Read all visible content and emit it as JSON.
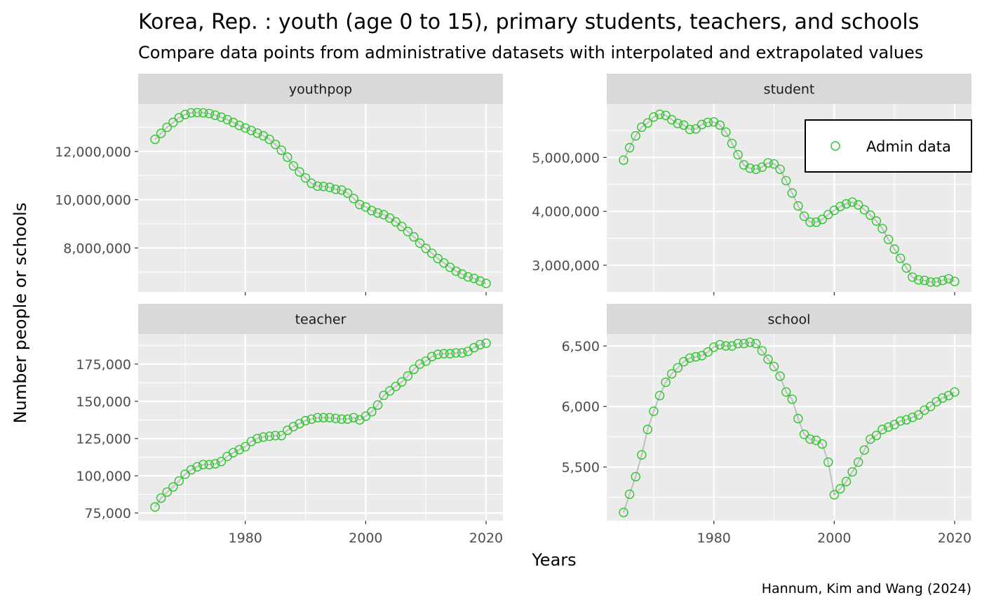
{
  "title": "Korea, Rep. : youth (age 0 to 15), primary students, teachers, and schools",
  "subtitle": "Compare data points from administrative datasets with interpolated and extrapolated values",
  "ylabel": "Number people or schools",
  "xlabel": "Years",
  "caption": "Hannum, Kim and Wang (2024)",
  "legend": {
    "label": "Admin data",
    "position": "top-right"
  },
  "colors": {
    "points": "#2dc72d",
    "line": "#bfbfbf",
    "panel_bg": "#ebebeb",
    "strip_bg": "#d9d9d9",
    "grid": "#ffffff"
  },
  "chart_data": [
    {
      "type": "line",
      "panel": "youthpop",
      "grid": true,
      "x_ticks": [
        1980,
        2000,
        2020
      ],
      "x_tick_labels": [
        "1980",
        "2000",
        "2020"
      ],
      "y_ticks": [
        8000000,
        10000000,
        12000000
      ],
      "y_tick_labels": [
        "8,000,000",
        "10,000,000",
        "12,000,000"
      ],
      "ylim": [
        6500000,
        13650000
      ],
      "x": [
        1965,
        1966,
        1967,
        1968,
        1969,
        1970,
        1971,
        1972,
        1973,
        1974,
        1975,
        1976,
        1977,
        1978,
        1979,
        1980,
        1981,
        1982,
        1983,
        1984,
        1985,
        1986,
        1987,
        1988,
        1989,
        1990,
        1991,
        1992,
        1993,
        1994,
        1995,
        1996,
        1997,
        1998,
        1999,
        2000,
        2001,
        2002,
        2003,
        2004,
        2005,
        2006,
        2007,
        2008,
        2009,
        2010,
        2011,
        2012,
        2013,
        2014,
        2015,
        2016,
        2017,
        2018,
        2019,
        2020
      ],
      "y": [
        12500000,
        12750000,
        13000000,
        13200000,
        13400000,
        13530000,
        13600000,
        13610000,
        13600000,
        13570000,
        13500000,
        13420000,
        13320000,
        13200000,
        13080000,
        12970000,
        12870000,
        12760000,
        12650000,
        12500000,
        12290000,
        12050000,
        11760000,
        11400000,
        11150000,
        10900000,
        10680000,
        10560000,
        10550000,
        10510000,
        10430000,
        10400000,
        10270000,
        10050000,
        9800000,
        9700000,
        9550000,
        9450000,
        9380000,
        9240000,
        9080000,
        8890000,
        8680000,
        8460000,
        8200000,
        7980000,
        7780000,
        7560000,
        7380000,
        7200000,
        7040000,
        6920000,
        6800000,
        6740000,
        6630000,
        6530000
      ]
    },
    {
      "type": "line",
      "panel": "student",
      "grid": true,
      "x_ticks": [
        1980,
        2000,
        2020
      ],
      "x_tick_labels": [
        "1980",
        "2000",
        "2020"
      ],
      "y_ticks": [
        3000000,
        4000000,
        5000000
      ],
      "y_tick_labels": [
        "3,000,000",
        "4,000,000",
        "5,000,000"
      ],
      "ylim": [
        2650000,
        5850000
      ],
      "x": [
        1965,
        1966,
        1967,
        1968,
        1969,
        1970,
        1971,
        1972,
        1973,
        1974,
        1975,
        1976,
        1977,
        1978,
        1979,
        1980,
        1981,
        1982,
        1983,
        1984,
        1985,
        1986,
        1987,
        1988,
        1989,
        1990,
        1991,
        1992,
        1993,
        1994,
        1995,
        1996,
        1997,
        1998,
        1999,
        2000,
        2001,
        2002,
        2003,
        2004,
        2005,
        2006,
        2007,
        2008,
        2009,
        2010,
        2011,
        2012,
        2013,
        2014,
        2015,
        2016,
        2017,
        2018,
        2019,
        2020
      ],
      "y": [
        4950000,
        5180000,
        5400000,
        5560000,
        5640000,
        5750000,
        5800000,
        5780000,
        5700000,
        5630000,
        5600000,
        5520000,
        5530000,
        5610000,
        5650000,
        5660000,
        5600000,
        5470000,
        5260000,
        5050000,
        4860000,
        4800000,
        4780000,
        4820000,
        4900000,
        4880000,
        4780000,
        4570000,
        4340000,
        4100000,
        3910000,
        3800000,
        3800000,
        3850000,
        3940000,
        4020000,
        4090000,
        4140000,
        4170000,
        4120000,
        4030000,
        3930000,
        3820000,
        3680000,
        3480000,
        3300000,
        3130000,
        2950000,
        2780000,
        2730000,
        2720000,
        2690000,
        2690000,
        2720000,
        2750000,
        2700000
      ]
    },
    {
      "type": "line",
      "panel": "teacher",
      "grid": true,
      "x_ticks": [
        1980,
        2000,
        2020
      ],
      "x_tick_labels": [
        "1980",
        "2000",
        "2020"
      ],
      "y_ticks": [
        75000,
        100000,
        125000,
        150000,
        175000
      ],
      "y_tick_labels": [
        "75,000",
        "100,000",
        "125,000",
        "150,000",
        "175,000"
      ],
      "ylim": [
        75000,
        190000
      ],
      "x": [
        1965,
        1966,
        1967,
        1968,
        1969,
        1970,
        1971,
        1972,
        1973,
        1974,
        1975,
        1976,
        1977,
        1978,
        1979,
        1980,
        1981,
        1982,
        1983,
        1984,
        1985,
        1986,
        1987,
        1988,
        1989,
        1990,
        1991,
        1992,
        1993,
        1994,
        1995,
        1996,
        1997,
        1998,
        1999,
        2000,
        2001,
        2002,
        2003,
        2004,
        2005,
        2006,
        2007,
        2008,
        2009,
        2010,
        2011,
        2012,
        2013,
        2014,
        2015,
        2016,
        2017,
        2018,
        2019,
        2020
      ],
      "y": [
        79000,
        85000,
        89000,
        92500,
        96500,
        101000,
        104000,
        106000,
        107500,
        107500,
        108000,
        109500,
        113000,
        115500,
        117500,
        119500,
        123000,
        125000,
        126000,
        126500,
        127000,
        127000,
        130500,
        133000,
        135000,
        137000,
        138000,
        139000,
        139000,
        139000,
        138500,
        138000,
        138000,
        139000,
        137500,
        140000,
        143000,
        147500,
        154000,
        157000,
        160000,
        163000,
        167000,
        171500,
        175000,
        177000,
        180000,
        181500,
        182000,
        182000,
        182500,
        182500,
        183500,
        186000,
        188000,
        189000
      ]
    },
    {
      "type": "line",
      "panel": "school",
      "grid": true,
      "x_ticks": [
        1980,
        2000,
        2020
      ],
      "x_tick_labels": [
        "1980",
        "2000",
        "2020"
      ],
      "y_ticks": [
        5500,
        6000,
        6500
      ],
      "y_tick_labels": [
        "5,500",
        "6,000",
        "6,500"
      ],
      "ylim": [
        5120,
        6535
      ],
      "x": [
        1965,
        1966,
        1967,
        1968,
        1969,
        1970,
        1971,
        1972,
        1973,
        1974,
        1975,
        1976,
        1977,
        1978,
        1979,
        1980,
        1981,
        1982,
        1983,
        1984,
        1985,
        1986,
        1987,
        1988,
        1989,
        1990,
        1991,
        1992,
        1993,
        1994,
        1995,
        1996,
        1997,
        1998,
        1999,
        2000,
        2001,
        2002,
        2003,
        2004,
        2005,
        2006,
        2007,
        2008,
        2009,
        2010,
        2011,
        2012,
        2013,
        2014,
        2015,
        2016,
        2017,
        2018,
        2019,
        2020
      ],
      "y": [
        5125,
        5275,
        5420,
        5600,
        5810,
        5960,
        6090,
        6200,
        6270,
        6320,
        6370,
        6400,
        6410,
        6420,
        6450,
        6490,
        6510,
        6500,
        6500,
        6520,
        6520,
        6530,
        6520,
        6460,
        6390,
        6330,
        6250,
        6120,
        6060,
        5900,
        5770,
        5730,
        5720,
        5690,
        5540,
        5270,
        5320,
        5380,
        5460,
        5540,
        5640,
        5730,
        5760,
        5810,
        5830,
        5850,
        5880,
        5890,
        5910,
        5930,
        5970,
        6000,
        6040,
        6070,
        6090,
        6120
      ]
    }
  ]
}
